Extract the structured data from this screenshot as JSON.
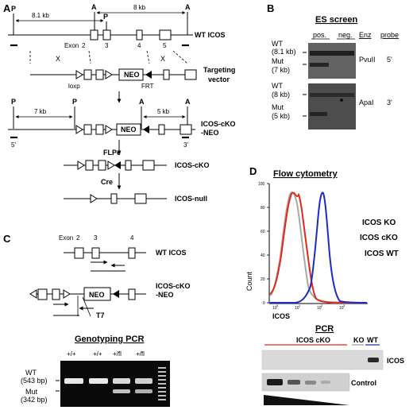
{
  "panels": {
    "a": {
      "letter": "A",
      "site_p": "P",
      "site_a": "A",
      "dist_p": "8.1 kb",
      "dist_a": "8 kb",
      "exon_prefix": "Exon",
      "exons": [
        "2",
        "3",
        "4",
        "5"
      ],
      "x_mark": "X",
      "wt_label": "WT ICOS",
      "targeting_vector_label": "Targeting\nvector",
      "loxp": "loxp",
      "frt": "FRT",
      "neo": "NEO",
      "dist_p2": "7 kb",
      "dist_a2": "5 kb",
      "probe5": "5'",
      "probe3": "3'",
      "cko_neo_label": "ICOS-cKO\n-NEO",
      "flpe": "FLPe",
      "cko_label": "ICOS-cKO",
      "cre": "Cre",
      "null_label": "ICOS-null"
    },
    "b": {
      "letter": "B",
      "title": "ES screen",
      "col_pos": "pos.",
      "col_neg": "neg.",
      "col_enz": "Enz",
      "col_probe": "probe",
      "blot1": {
        "wt": "WT",
        "wt_size": "(8.1 kb)",
        "mut": "Mut",
        "mut_size": "(7 kb)",
        "enzyme": "PvuII",
        "probe": "5'"
      },
      "blot2": {
        "wt": "WT",
        "wt_size": "(8 kb)",
        "mut": "Mut",
        "mut_size": "(5 kb)",
        "enzyme": "ApaI",
        "probe": "3'"
      }
    },
    "c": {
      "letter": "C",
      "exon_prefix": "Exon",
      "exons": [
        "2",
        "3",
        "4"
      ],
      "wt_label": "WT ICOS",
      "cko_neo_label": "ICOS-cKO\n-NEO",
      "neo": "NEO",
      "t7": "T7",
      "gel_title": "Genotyping PCR",
      "lanes": [
        "+/+",
        "+/+",
        "+/fl",
        "+/fl"
      ],
      "wt_band": "WT",
      "wt_size": "(543 bp)",
      "mut_band": "Mut",
      "mut_size": "(342 bp)"
    },
    "d": {
      "letter": "D",
      "title": "Flow cytometry",
      "y_label": "Count",
      "x_label": "ICOS",
      "y_ticks": [
        "100",
        "80",
        "60",
        "40",
        "20",
        "0"
      ],
      "x_ticks": [
        "0",
        "1",
        "2",
        "3"
      ],
      "x_tick_base": "10",
      "legend": [
        {
          "label": "ICOS KO",
          "color": "#a8a8a8"
        },
        {
          "label": "ICOS cKO",
          "color": "#e0281c"
        },
        {
          "label": "ICOS WT",
          "color": "#1c2ac8"
        }
      ],
      "pcr_title": "PCR",
      "group_cko": "ICOS cKO",
      "group_ko": "KO",
      "group_wt": "WT",
      "row_icos": "ICOS",
      "row_control": "Control",
      "colors": {
        "cko": "#e0281c",
        "ko": "#999999",
        "wt": "#1c2ac8"
      }
    }
  }
}
